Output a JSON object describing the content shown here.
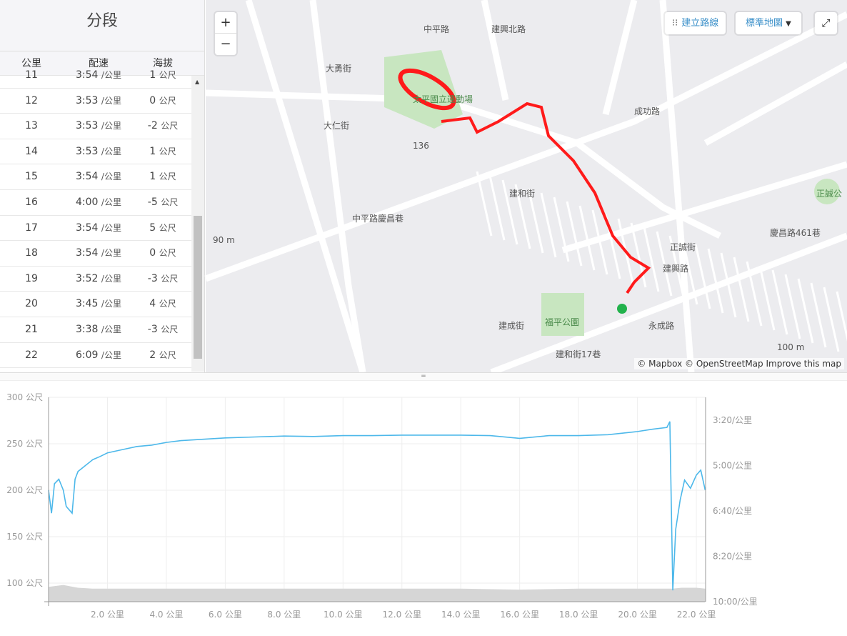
{
  "splits": {
    "title": "分段",
    "headers": [
      "公里",
      "配速",
      "海拔"
    ],
    "pace_unit": "/公里",
    "elev_unit": "公尺",
    "rows": [
      {
        "km": "11",
        "pace": "3:54",
        "elev": "1"
      },
      {
        "km": "12",
        "pace": "3:53",
        "elev": "0"
      },
      {
        "km": "13",
        "pace": "3:53",
        "elev": "-2"
      },
      {
        "km": "14",
        "pace": "3:53",
        "elev": "1"
      },
      {
        "km": "15",
        "pace": "3:54",
        "elev": "1"
      },
      {
        "km": "16",
        "pace": "4:00",
        "elev": "-5"
      },
      {
        "km": "17",
        "pace": "3:54",
        "elev": "5"
      },
      {
        "km": "18",
        "pace": "3:54",
        "elev": "0"
      },
      {
        "km": "19",
        "pace": "3:52",
        "elev": "-3"
      },
      {
        "km": "20",
        "pace": "3:45",
        "elev": "4"
      },
      {
        "km": "21",
        "pace": "3:38",
        "elev": "-3"
      },
      {
        "km": "22",
        "pace": "6:09",
        "elev": "2"
      }
    ]
  },
  "map": {
    "zoom_in": "+",
    "zoom_out": "−",
    "route_button": "建立路線",
    "style_select": "標準地圖",
    "fullscreen_icon": "expand-icon",
    "attribution": "© Mapbox © OpenStreetMap Improve this map",
    "route_color": "#ff1a1a",
    "park_color": "#c8e6c0",
    "labels": [
      {
        "t": "太平國立運動場"
      },
      {
        "t": "建興北路"
      },
      {
        "t": "大勇街"
      },
      {
        "t": "大仁街"
      },
      {
        "t": "成功路"
      },
      {
        "t": "中平路"
      },
      {
        "t": "中平路慶昌巷"
      },
      {
        "t": "建和街"
      },
      {
        "t": "正誠街"
      },
      {
        "t": "建興路"
      },
      {
        "t": "建成街"
      },
      {
        "t": "福平公園"
      },
      {
        "t": "建和街17巷"
      },
      {
        "t": "永成路"
      },
      {
        "t": "正誠公"
      },
      {
        "t": "慶昌路461巷"
      },
      {
        "t": "136"
      },
      {
        "t": "90 m"
      },
      {
        "t": "100 m"
      }
    ]
  },
  "chart_data": {
    "type": "line",
    "x_ticks": [
      "2.0 公里",
      "4.0 公里",
      "6.0 公里",
      "8.0 公里",
      "10.0 公里",
      "12.0 公里",
      "14.0 公里",
      "16.0 公里",
      "18.0 公里",
      "20.0 公里",
      "22.0 公里"
    ],
    "left_ticks": [
      "300 公尺",
      "250 公尺",
      "200 公尺",
      "150 公尺",
      "100 公尺"
    ],
    "right_ticks": [
      "3:20/公里",
      "5:00/公里",
      "6:40/公里",
      "8:20/公里",
      "10:00/公里"
    ],
    "xlim": [
      0,
      22.3
    ],
    "elevation_ylim": [
      80,
      300
    ],
    "pace_ylim": [
      "3:20",
      "10:00"
    ],
    "grid": true,
    "series": [
      {
        "kind": "pace",
        "color": "#4db8ea",
        "x": [
          0,
          0.1,
          0.2,
          0.35,
          0.5,
          0.6,
          0.8,
          0.9,
          1.0,
          1.25,
          1.5,
          1.75,
          2.0,
          2.5,
          3.0,
          3.5,
          4.0,
          4.5,
          5.0,
          6.0,
          7.0,
          8.0,
          9.0,
          10.0,
          11.0,
          12.0,
          13.0,
          14.0,
          15.0,
          16.0,
          17.0,
          18.0,
          19.0,
          20.0,
          20.5,
          21.0,
          21.1,
          21.2,
          21.3,
          21.45,
          21.6,
          21.8,
          22.0,
          22.15,
          22.3
        ],
        "pace": [
          "5:54",
          "6:45",
          "5:40",
          "5:30",
          "5:54",
          "6:30",
          "6:45",
          "5:30",
          "5:13",
          "5:00",
          "4:47",
          "4:40",
          "4:32",
          "4:25",
          "4:18",
          "4:15",
          "4:09",
          "4:05",
          "4:03",
          "3:59",
          "3:57",
          "3:55",
          "3:56",
          "3:54",
          "3:54",
          "3:53",
          "3:53",
          "3:53",
          "3:54",
          "4:00",
          "3:54",
          "3:54",
          "3:52",
          "3:45",
          "3:40",
          "3:36",
          "3:23",
          "9:35",
          "7:20",
          "6:16",
          "5:32",
          "5:50",
          "5:21",
          "5:10",
          "5:54"
        ]
      },
      {
        "kind": "elevation",
        "color": "#d6d6d6",
        "x": [
          0,
          0.5,
          1.0,
          1.5,
          2.0,
          4.0,
          6.0,
          8.0,
          10.0,
          12.0,
          14.0,
          16.0,
          18.0,
          20.0,
          21.0,
          21.2,
          21.5,
          22.0,
          22.3
        ],
        "elev": [
          96,
          98,
          95,
          94,
          94,
          94,
          94,
          94,
          94,
          94,
          94,
          93,
          94,
          94,
          94,
          94,
          95,
          95,
          94
        ]
      }
    ]
  }
}
